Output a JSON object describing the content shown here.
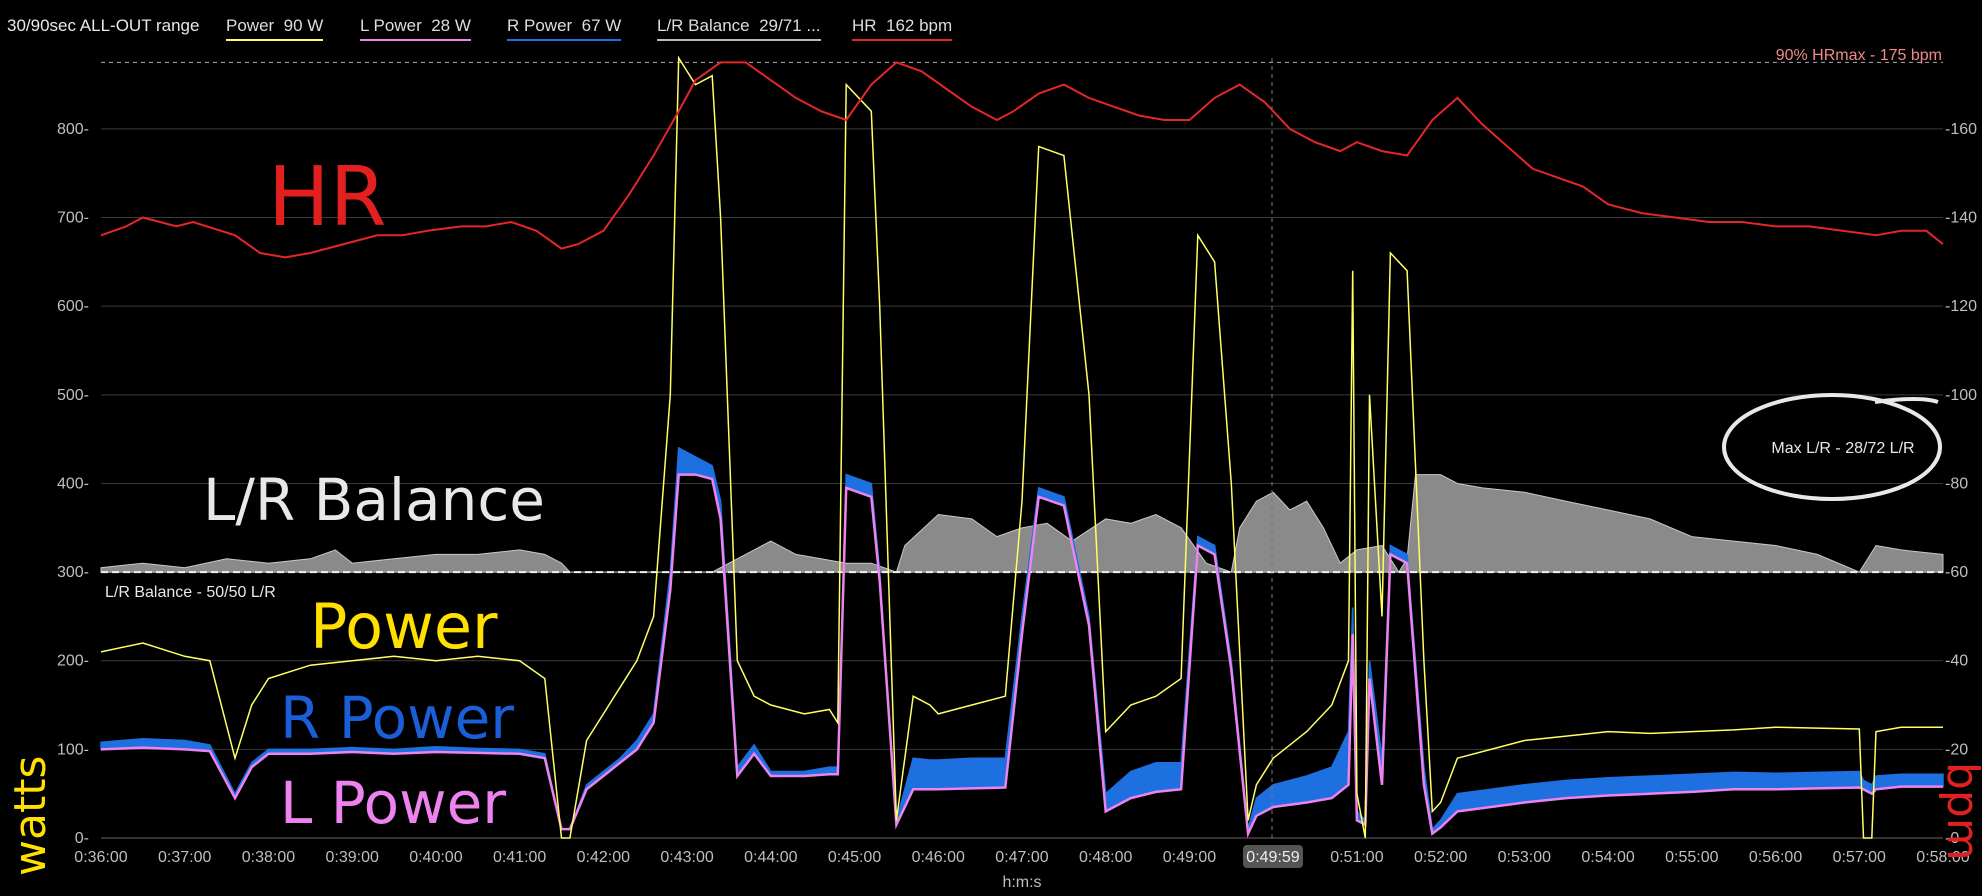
{
  "header": {
    "title": "30/90sec ALL-OUT range",
    "legend": [
      {
        "label": "Power",
        "value": "90 W",
        "color": "#ffff66"
      },
      {
        "label": "L Power",
        "value": "28 W",
        "color": "#ee82ee"
      },
      {
        "label": "R Power",
        "value": "67 W",
        "color": "#1e6fe0"
      },
      {
        "label": "L/R Balance",
        "value": "29/71 ...",
        "color": "#bbbbbb"
      },
      {
        "label": "HR",
        "value": "162 bpm",
        "color": "#e3262a"
      }
    ]
  },
  "annotations": {
    "hrmax_line": "90% HRmax - 175 bpm",
    "balance_line": "L/R Balance - 50/50 L/R",
    "max_lr": "Max L/R - 28/72 L/R",
    "cursor_time": "0:49:59",
    "hand_hr": "HR",
    "hand_balance": "L/R Balance",
    "hand_power": "Power",
    "hand_rpower": "R Power",
    "hand_lpower": "L Power",
    "hand_watts": "watts",
    "hand_bpm": "bpm"
  },
  "chart_data": {
    "type": "line",
    "xlabel": "h:m:s",
    "x_ticks": [
      "0:36:00",
      "0:37:00",
      "0:38:00",
      "0:39:00",
      "0:40:00",
      "0:41:00",
      "0:42:00",
      "0:43:00",
      "0:44:00",
      "0:45:00",
      "0:46:00",
      "0:47:00",
      "0:48:00",
      "0:49:00",
      "0:50:00",
      "0:51:00",
      "0:52:00",
      "0:53:00",
      "0:54:00",
      "0:55:00",
      "0:56:00",
      "0:57:00",
      "0:58:00"
    ],
    "xlim": [
      36,
      58
    ],
    "y_left": {
      "ticks": [
        0,
        100,
        200,
        300,
        400,
        500,
        600,
        700,
        800
      ],
      "ylim": [
        0,
        880
      ]
    },
    "y_right": {
      "ticks": [
        0,
        20,
        40,
        60,
        80,
        100,
        120,
        140,
        160
      ],
      "ylim": [
        0,
        176
      ]
    },
    "hrmax_value": 175,
    "balance_baseline": 60,
    "series": [
      {
        "name": "HR",
        "axis": "right",
        "color": "#e3262a",
        "x": [
          36,
          36.3,
          36.5,
          36.9,
          37.1,
          37.6,
          37.9,
          38.2,
          38.5,
          38.9,
          39.3,
          39.6,
          39.9,
          40.3,
          40.6,
          40.9,
          41.2,
          41.5,
          41.7,
          42,
          42.3,
          42.6,
          42.9,
          43.1,
          43.4,
          43.7,
          44,
          44.3,
          44.6,
          44.9,
          45.2,
          45.5,
          45.8,
          46.1,
          46.4,
          46.7,
          46.9,
          47.2,
          47.5,
          47.8,
          48.1,
          48.4,
          48.7,
          49,
          49.3,
          49.6,
          49.9,
          50.2,
          50.5,
          50.8,
          51,
          51.3,
          51.6,
          51.9,
          52.2,
          52.5,
          52.8,
          53.1,
          53.4,
          53.7,
          54,
          54.4,
          54.8,
          55.2,
          55.6,
          56,
          56.4,
          56.8,
          57.2,
          57.5,
          57.8,
          58
        ],
        "y": [
          136,
          138,
          140,
          138,
          139,
          136,
          132,
          131,
          132,
          134,
          136,
          136,
          137,
          138,
          138,
          139,
          137,
          133,
          134,
          137,
          145,
          154,
          164,
          171,
          175,
          175,
          171,
          167,
          164,
          162,
          170,
          175,
          173,
          169,
          165,
          162,
          164,
          168,
          170,
          167,
          165,
          163,
          162,
          162,
          167,
          170,
          166,
          160,
          157,
          155,
          157,
          155,
          154,
          162,
          167,
          161,
          156,
          151,
          149,
          147,
          143,
          141,
          140,
          139,
          139,
          138,
          138,
          137,
          136,
          137,
          137,
          134
        ]
      },
      {
        "name": "Power",
        "axis": "left",
        "color": "#ffff66",
        "x": [
          36,
          36.5,
          37,
          37.3,
          37.6,
          37.8,
          38,
          38.5,
          39,
          39.5,
          40,
          40.5,
          41,
          41.3,
          41.5,
          41.6,
          41.8,
          42,
          42.2,
          42.4,
          42.6,
          42.8,
          42.9,
          43.1,
          43.3,
          43.4,
          43.6,
          43.8,
          44,
          44.4,
          44.7,
          44.8,
          44.9,
          45.2,
          45.3,
          45.5,
          45.7,
          45.9,
          46,
          46.4,
          46.8,
          47,
          47.2,
          47.5,
          47.8,
          48,
          48.3,
          48.6,
          48.9,
          49.1,
          49.3,
          49.5,
          49.7,
          49.8,
          50,
          50.4,
          50.7,
          50.9,
          50.95,
          51,
          51.1,
          51.15,
          51.3,
          51.4,
          51.6,
          51.8,
          51.9,
          52,
          52.2,
          52.6,
          53,
          53.5,
          54,
          54.5,
          55,
          55.5,
          56,
          56.5,
          57,
          57.05,
          57.15,
          57.2,
          57.5,
          58
        ],
        "y": [
          210,
          220,
          205,
          200,
          90,
          150,
          180,
          195,
          200,
          205,
          200,
          205,
          200,
          180,
          0,
          0,
          110,
          140,
          170,
          200,
          250,
          500,
          880,
          850,
          860,
          700,
          200,
          160,
          150,
          140,
          145,
          130,
          850,
          820,
          600,
          20,
          160,
          150,
          140,
          150,
          160,
          380,
          780,
          770,
          500,
          120,
          150,
          160,
          180,
          680,
          650,
          400,
          20,
          60,
          90,
          120,
          150,
          200,
          640,
          50,
          0,
          500,
          250,
          660,
          640,
          200,
          30,
          40,
          90,
          100,
          110,
          115,
          120,
          118,
          120,
          122,
          125,
          124,
          123,
          0,
          0,
          120,
          125,
          125
        ]
      },
      {
        "name": "R Power",
        "axis": "left",
        "color": "#1e6fe0",
        "x": [
          36,
          36.5,
          37,
          37.3,
          37.6,
          37.8,
          38,
          38.5,
          39,
          39.5,
          40,
          40.5,
          41,
          41.3,
          41.5,
          41.6,
          41.8,
          42,
          42.2,
          42.4,
          42.6,
          42.8,
          42.9,
          43.1,
          43.3,
          43.4,
          43.6,
          43.8,
          44,
          44.4,
          44.7,
          44.8,
          44.9,
          45.2,
          45.3,
          45.5,
          45.7,
          45.9,
          46,
          46.4,
          46.8,
          47,
          47.2,
          47.5,
          47.8,
          48,
          48.3,
          48.6,
          48.9,
          49.1,
          49.3,
          49.5,
          49.7,
          49.8,
          50,
          50.4,
          50.7,
          50.9,
          50.95,
          51,
          51.1,
          51.15,
          51.3,
          51.4,
          51.6,
          51.8,
          51.9,
          52,
          52.2,
          52.6,
          53,
          53.5,
          54,
          54.5,
          55,
          55.5,
          56,
          56.5,
          57,
          57.05,
          57.15,
          57.2,
          57.5,
          58
        ],
        "y": [
          108,
          112,
          110,
          105,
          50,
          85,
          100,
          100,
          102,
          100,
          103,
          101,
          100,
          95,
          10,
          10,
          60,
          75,
          90,
          110,
          140,
          300,
          440,
          430,
          420,
          380,
          80,
          105,
          75,
          75,
          80,
          80,
          410,
          400,
          300,
          20,
          90,
          88,
          88,
          90,
          90,
          250,
          395,
          385,
          250,
          50,
          75,
          85,
          85,
          340,
          330,
          200,
          10,
          45,
          60,
          70,
          80,
          120,
          260,
          30,
          20,
          200,
          90,
          330,
          320,
          80,
          10,
          20,
          50,
          55,
          60,
          65,
          68,
          70,
          72,
          74,
          73,
          74,
          75,
          65,
          60,
          70,
          72,
          72
        ]
      },
      {
        "name": "L Power",
        "axis": "left",
        "color": "#ee82ee",
        "x": [
          36,
          36.5,
          37,
          37.3,
          37.6,
          37.8,
          38,
          38.5,
          39,
          39.5,
          40,
          40.5,
          41,
          41.3,
          41.5,
          41.6,
          41.8,
          42,
          42.2,
          42.4,
          42.6,
          42.8,
          42.9,
          43.1,
          43.3,
          43.4,
          43.6,
          43.8,
          44,
          44.4,
          44.7,
          44.8,
          44.9,
          45.2,
          45.3,
          45.5,
          45.7,
          45.9,
          46,
          46.4,
          46.8,
          47,
          47.2,
          47.5,
          47.8,
          48,
          48.3,
          48.6,
          48.9,
          49.1,
          49.3,
          49.5,
          49.7,
          49.8,
          50,
          50.4,
          50.7,
          50.9,
          50.95,
          51,
          51.1,
          51.15,
          51.3,
          51.4,
          51.6,
          51.8,
          51.9,
          52,
          52.2,
          52.6,
          53,
          53.5,
          54,
          54.5,
          55,
          55.5,
          56,
          56.5,
          57,
          57.05,
          57.15,
          57.2,
          57.5,
          58
        ],
        "y": [
          100,
          102,
          100,
          98,
          45,
          80,
          95,
          95,
          97,
          95,
          97,
          96,
          95,
          90,
          10,
          10,
          55,
          70,
          85,
          100,
          130,
          280,
          410,
          410,
          405,
          360,
          70,
          95,
          70,
          70,
          72,
          72,
          395,
          385,
          290,
          15,
          55,
          55,
          55,
          56,
          57,
          230,
          385,
          375,
          240,
          30,
          45,
          52,
          55,
          330,
          320,
          190,
          5,
          25,
          35,
          40,
          45,
          60,
          230,
          20,
          15,
          180,
          60,
          320,
          310,
          60,
          5,
          12,
          30,
          35,
          40,
          45,
          48,
          50,
          52,
          55,
          55,
          56,
          57,
          55,
          50,
          55,
          58,
          58
        ]
      },
      {
        "name": "L/R Balance",
        "axis": "right",
        "color": "#8a8a8a",
        "x": [
          36,
          36.5,
          37,
          37.5,
          38,
          38.5,
          38.8,
          39,
          39.5,
          40,
          40.5,
          41,
          41.3,
          41.5,
          41.6,
          41.8,
          42,
          42.5,
          42.7,
          42.9,
          43.1,
          43.3,
          43.5,
          43.8,
          44,
          44.3,
          44.6,
          44.9,
          45.2,
          45.5,
          45.6,
          46,
          46.4,
          46.7,
          47,
          47.3,
          47.6,
          48,
          48.3,
          48.6,
          48.9,
          49.2,
          49.5,
          49.6,
          49.8,
          50,
          50.2,
          50.4,
          50.6,
          50.8,
          51,
          51.3,
          51.5,
          51.6,
          51.7,
          52,
          52.2,
          52.5,
          53,
          53.5,
          54,
          54.5,
          55,
          55.5,
          56,
          56.5,
          57,
          57.2,
          57.5,
          58
        ],
        "y": [
          61,
          62,
          61,
          63,
          62,
          63,
          65,
          62,
          63,
          64,
          64,
          65,
          64,
          62,
          60,
          60,
          60,
          60,
          60,
          60,
          60,
          60,
          62,
          65,
          67,
          64,
          63,
          62,
          62,
          60,
          66,
          73,
          72,
          68,
          70,
          71,
          67,
          72,
          71,
          73,
          70,
          62,
          60,
          70,
          76,
          78,
          74,
          76,
          70,
          62,
          65,
          66,
          60,
          63,
          82,
          82,
          80,
          79,
          78,
          76,
          74,
          72,
          68,
          67,
          66,
          64,
          60,
          66,
          65,
          64
        ]
      }
    ]
  }
}
